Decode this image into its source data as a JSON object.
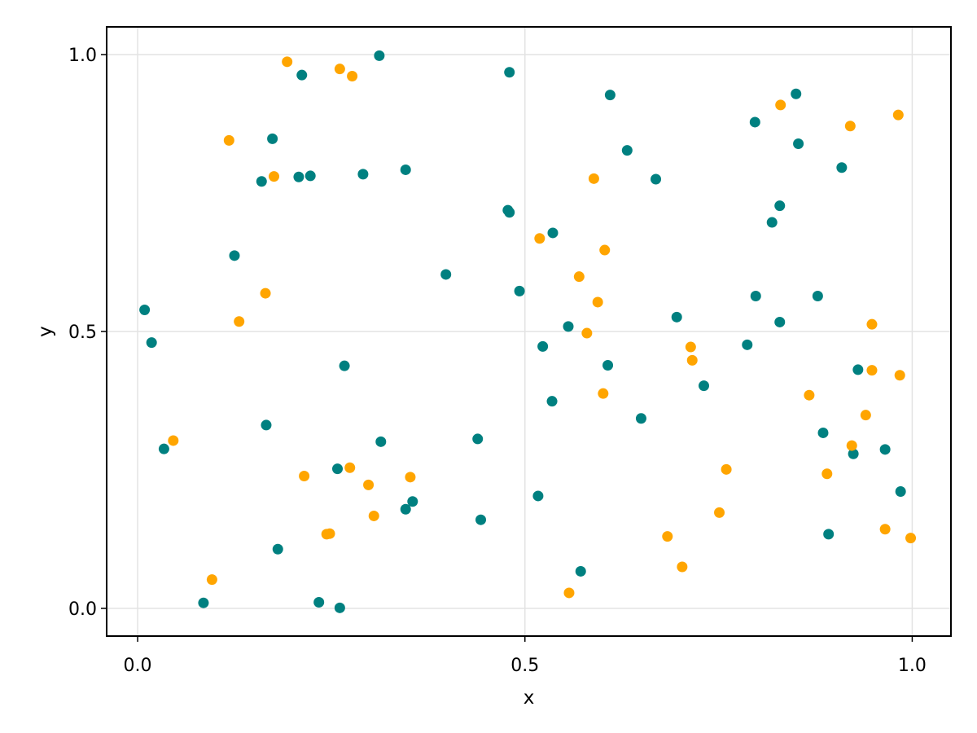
{
  "chart_data": {
    "type": "scatter",
    "xlabel": "x",
    "ylabel": "y",
    "xlim": [
      -0.04,
      1.05
    ],
    "ylim": [
      -0.05,
      1.05
    ],
    "xticks": [
      0.0,
      0.5,
      1.0
    ],
    "xtick_labels": [
      "0.0",
      "0.5",
      "1.0"
    ],
    "yticks": [
      0.0,
      0.5,
      1.0
    ],
    "ytick_labels": [
      "0.0",
      "0.5",
      "1.0"
    ],
    "grid": true,
    "legend": "none",
    "series": [
      {
        "color": "#008080",
        "points": [
          [
            0.312,
            0.998
          ],
          [
            0.48,
            0.968
          ],
          [
            0.212,
            0.963
          ],
          [
            0.61,
            0.927
          ],
          [
            0.85,
            0.929
          ],
          [
            0.797,
            0.878
          ],
          [
            0.853,
            0.839
          ],
          [
            0.632,
            0.827
          ],
          [
            0.174,
            0.848
          ],
          [
            0.909,
            0.796
          ],
          [
            0.346,
            0.792
          ],
          [
            0.291,
            0.784
          ],
          [
            0.223,
            0.781
          ],
          [
            0.208,
            0.779
          ],
          [
            0.16,
            0.771
          ],
          [
            0.669,
            0.775
          ],
          [
            0.478,
            0.719
          ],
          [
            0.48,
            0.715
          ],
          [
            0.829,
            0.727
          ],
          [
            0.819,
            0.697
          ],
          [
            0.536,
            0.678
          ],
          [
            0.125,
            0.637
          ],
          [
            0.398,
            0.603
          ],
          [
            0.493,
            0.573
          ],
          [
            0.798,
            0.564
          ],
          [
            0.878,
            0.564
          ],
          [
            0.009,
            0.539
          ],
          [
            0.696,
            0.526
          ],
          [
            0.829,
            0.517
          ],
          [
            0.556,
            0.509
          ],
          [
            0.018,
            0.48
          ],
          [
            0.787,
            0.476
          ],
          [
            0.523,
            0.473
          ],
          [
            0.267,
            0.438
          ],
          [
            0.607,
            0.439
          ],
          [
            0.93,
            0.431
          ],
          [
            0.731,
            0.402
          ],
          [
            0.535,
            0.374
          ],
          [
            0.65,
            0.343
          ],
          [
            0.166,
            0.331
          ],
          [
            0.885,
            0.317
          ],
          [
            0.439,
            0.306
          ],
          [
            0.314,
            0.301
          ],
          [
            0.034,
            0.288
          ],
          [
            0.965,
            0.287
          ],
          [
            0.924,
            0.279
          ],
          [
            0.258,
            0.252
          ],
          [
            0.985,
            0.211
          ],
          [
            0.517,
            0.203
          ],
          [
            0.355,
            0.193
          ],
          [
            0.346,
            0.179
          ],
          [
            0.443,
            0.16
          ],
          [
            0.892,
            0.134
          ],
          [
            0.181,
            0.107
          ],
          [
            0.572,
            0.067
          ],
          [
            0.085,
            0.01
          ],
          [
            0.234,
            0.011
          ],
          [
            0.261,
            0.001
          ]
        ]
      },
      {
        "color": "#ffa500",
        "points": [
          [
            0.193,
            0.987
          ],
          [
            0.261,
            0.974
          ],
          [
            0.277,
            0.961
          ],
          [
            0.83,
            0.909
          ],
          [
            0.982,
            0.891
          ],
          [
            0.92,
            0.871
          ],
          [
            0.118,
            0.845
          ],
          [
            0.176,
            0.78
          ],
          [
            0.589,
            0.776
          ],
          [
            0.519,
            0.668
          ],
          [
            0.603,
            0.647
          ],
          [
            0.57,
            0.599
          ],
          [
            0.165,
            0.569
          ],
          [
            0.594,
            0.553
          ],
          [
            0.131,
            0.518
          ],
          [
            0.948,
            0.513
          ],
          [
            0.58,
            0.497
          ],
          [
            0.714,
            0.472
          ],
          [
            0.716,
            0.448
          ],
          [
            0.948,
            0.43
          ],
          [
            0.984,
            0.421
          ],
          [
            0.601,
            0.388
          ],
          [
            0.867,
            0.385
          ],
          [
            0.94,
            0.349
          ],
          [
            0.046,
            0.303
          ],
          [
            0.922,
            0.294
          ],
          [
            0.274,
            0.254
          ],
          [
            0.76,
            0.251
          ],
          [
            0.215,
            0.239
          ],
          [
            0.352,
            0.237
          ],
          [
            0.89,
            0.243
          ],
          [
            0.298,
            0.223
          ],
          [
            0.305,
            0.167
          ],
          [
            0.751,
            0.173
          ],
          [
            0.965,
            0.143
          ],
          [
            0.248,
            0.135
          ],
          [
            0.244,
            0.134
          ],
          [
            0.684,
            0.13
          ],
          [
            0.998,
            0.127
          ],
          [
            0.096,
            0.052
          ],
          [
            0.703,
            0.075
          ],
          [
            0.557,
            0.028
          ]
        ]
      }
    ]
  }
}
